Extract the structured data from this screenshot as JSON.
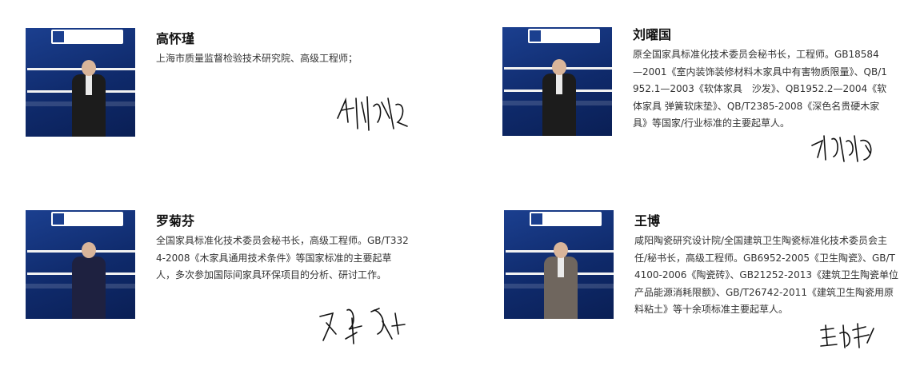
{
  "people": [
    {
      "name": "高怀瑾",
      "description": "上海市质量监督检验技术研究院、高级工程师；"
    },
    {
      "name": "刘曜国",
      "description": "原全国家具标准化技术委员会秘书长，工程师。GB18584—2001《室内装饰装修材料木家具中有害物质限量》、QB/1952.1—2003《软体家具　沙发》、QB1952.2—2004《软体家具 弹簧软床垫》、QB/T2385-2008《深色名贵硬木家具》等国家/行业标准的主要起草人。"
    },
    {
      "name": "罗菊芬",
      "description": "全国家具标准化技术委员会秘书长，高级工程师。GB/T3324-2008《木家具通用技术条件》等国家标准的主要起草人，多次参加国际间家具环保项目的分析、研讨工作。"
    },
    {
      "name": "王博",
      "description": "咸阳陶瓷研究设计院/全国建筑卫生陶瓷标准化技术委员会主任/秘书长，高级工程师。GB6952-2005《卫生陶瓷》、GB/T4100-2006《陶瓷砖》、GB21252-2013《建筑卫生陶瓷单位产品能源消耗限额》、GB/T26742-2011《建筑卫生陶瓷用原料粘土》等十余项标准主要起草人。"
    }
  ],
  "colors": {
    "banner_blue": "#1b3f8f",
    "name_text": "#111111",
    "desc_text": "#333333",
    "signature": "#111111"
  }
}
